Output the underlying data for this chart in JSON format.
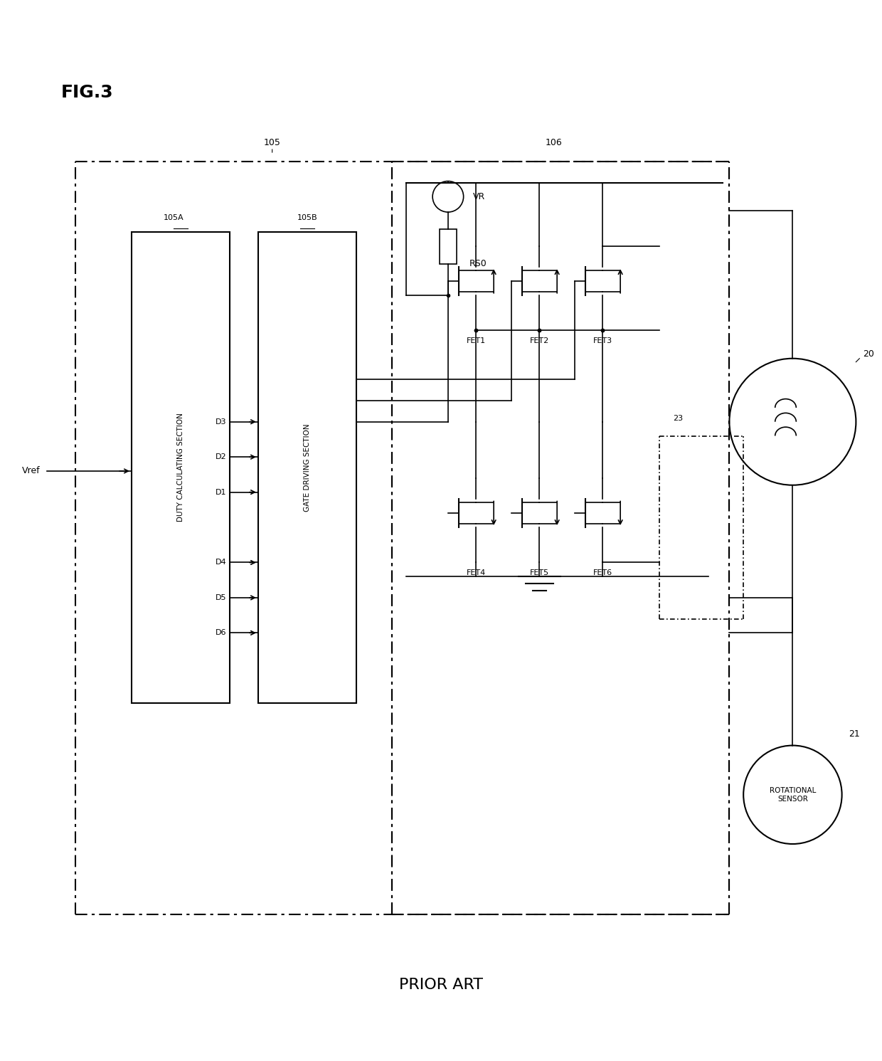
{
  "title": "FIG.3",
  "subtitle": "PRIOR ART",
  "bg_color": "#ffffff",
  "line_color": "#000000",
  "fig_width": 12.4,
  "fig_height": 14.91,
  "labels": {
    "fig_title": "FIG.3",
    "prior_art": "PRIOR ART",
    "vref": "Vref",
    "vr": "VR",
    "rs0": "RS0",
    "d1": "D1",
    "d2": "D2",
    "d3": "D3",
    "d4": "D4",
    "d5": "D5",
    "d6": "D6",
    "fet1": "FET1",
    "fet2": "FET2",
    "fet3": "FET3",
    "fet4": "FET4",
    "fet5": "FET5",
    "fet6": "FET6",
    "duty_calc": "DUTY CALCULATING SECTION",
    "gate_drv": "GATE DRIVING SECTION",
    "ref105": "105",
    "ref105a": "105A",
    "ref105b": "105B",
    "ref106": "106",
    "ref20": "20",
    "ref21": "21",
    "ref23": "23",
    "rotational_sensor": "ROTATIONAL\nSENSOR"
  }
}
